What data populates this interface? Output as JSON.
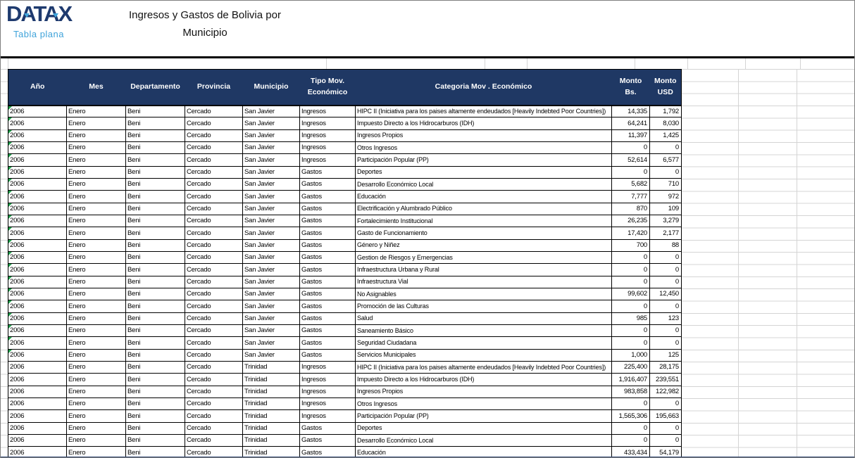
{
  "branding": {
    "logo": "DATAX",
    "tagline": "Tabla plana",
    "logo_color": "#1e3a6e",
    "tagline_color": "#3fa3da"
  },
  "title": {
    "line1": "Ingresos y Gastos de Bolivia por",
    "line2": "Municipio"
  },
  "theme": {
    "header_bg": "#1f3864",
    "header_text": "#ffffff",
    "cell_border": "#000000",
    "faint_gridline": "#d4d4d4",
    "error_indicator_green": "#1fa04a"
  },
  "table": {
    "columns": [
      "Año",
      "Mes",
      "Departamento",
      "Provincia",
      "Municipio",
      "Tipo Mov.\nEconómico",
      "Categoria Mov . Económico",
      "Monto Bs.",
      "Monto\nUSD"
    ],
    "fields": [
      "anio",
      "mes",
      "departamento",
      "provincia",
      "municipio",
      "tipo",
      "categoria",
      "monto_bs",
      "monto_usd"
    ],
    "rows": [
      {
        "anio": "2006",
        "mes": "Enero",
        "departamento": "Beni",
        "provincia": "Cercado",
        "municipio": "San Javier",
        "tipo": "Ingresos",
        "categoria": "HIPC II (Iniciativa para los paises altamente endeudados [Heavily Indebted Poor Countries])",
        "monto_bs": "14,335",
        "monto_usd": "1,792",
        "marker": true
      },
      {
        "anio": "2006",
        "mes": "Enero",
        "departamento": "Beni",
        "provincia": "Cercado",
        "municipio": "San Javier",
        "tipo": "Ingresos",
        "categoria": "Impuesto Directo a los Hidrocarburos (IDH)",
        "monto_bs": "64,241",
        "monto_usd": "8,030",
        "marker": true
      },
      {
        "anio": "2006",
        "mes": "Enero",
        "departamento": "Beni",
        "provincia": "Cercado",
        "municipio": "San Javier",
        "tipo": "Ingresos",
        "categoria": "Ingresos Propios",
        "monto_bs": "11,397",
        "monto_usd": "1,425",
        "marker": true
      },
      {
        "anio": "2006",
        "mes": "Enero",
        "departamento": "Beni",
        "provincia": "Cercado",
        "municipio": "San Javier",
        "tipo": "Ingresos",
        "categoria": "Otros Ingresos",
        "monto_bs": "0",
        "monto_usd": "0",
        "marker": true
      },
      {
        "anio": "2006",
        "mes": "Enero",
        "departamento": "Beni",
        "provincia": "Cercado",
        "municipio": "San Javier",
        "tipo": "Ingresos",
        "categoria": "Participación Popular (PP)",
        "monto_bs": "52,614",
        "monto_usd": "6,577",
        "marker": true
      },
      {
        "anio": "2006",
        "mes": "Enero",
        "departamento": "Beni",
        "provincia": "Cercado",
        "municipio": "San Javier",
        "tipo": "Gastos",
        "categoria": "Deportes",
        "monto_bs": "0",
        "monto_usd": "0",
        "marker": true
      },
      {
        "anio": "2006",
        "mes": "Enero",
        "departamento": "Beni",
        "provincia": "Cercado",
        "municipio": "San Javier",
        "tipo": "Gastos",
        "categoria": "Desarrollo Económico Local",
        "monto_bs": "5,682",
        "monto_usd": "710",
        "marker": true
      },
      {
        "anio": "2006",
        "mes": "Enero",
        "departamento": "Beni",
        "provincia": "Cercado",
        "municipio": "San Javier",
        "tipo": "Gastos",
        "categoria": "Educación",
        "monto_bs": "7,777",
        "monto_usd": "972",
        "marker": true
      },
      {
        "anio": "2006",
        "mes": "Enero",
        "departamento": "Beni",
        "provincia": "Cercado",
        "municipio": "San Javier",
        "tipo": "Gastos",
        "categoria": "Electrificación y Alumbrado Público",
        "monto_bs": "870",
        "monto_usd": "109",
        "marker": true
      },
      {
        "anio": "2006",
        "mes": "Enero",
        "departamento": "Beni",
        "provincia": "Cercado",
        "municipio": "San Javier",
        "tipo": "Gastos",
        "categoria": "Fortalecimiento Institucional",
        "monto_bs": "26,235",
        "monto_usd": "3,279",
        "marker": true
      },
      {
        "anio": "2006",
        "mes": "Enero",
        "departamento": "Beni",
        "provincia": "Cercado",
        "municipio": "San Javier",
        "tipo": "Gastos",
        "categoria": "Gasto de Funcionamiento",
        "monto_bs": "17,420",
        "monto_usd": "2,177",
        "marker": true
      },
      {
        "anio": "2006",
        "mes": "Enero",
        "departamento": "Beni",
        "provincia": "Cercado",
        "municipio": "San Javier",
        "tipo": "Gastos",
        "categoria": "Género y Niñez",
        "monto_bs": "700",
        "monto_usd": "88",
        "marker": true
      },
      {
        "anio": "2006",
        "mes": "Enero",
        "departamento": "Beni",
        "provincia": "Cercado",
        "municipio": "San Javier",
        "tipo": "Gastos",
        "categoria": "Gestion de Riesgos y Emergencias",
        "monto_bs": "0",
        "monto_usd": "0",
        "marker": true
      },
      {
        "anio": "2006",
        "mes": "Enero",
        "departamento": "Beni",
        "provincia": "Cercado",
        "municipio": "San Javier",
        "tipo": "Gastos",
        "categoria": "Infraestructura Urbana y Rural",
        "monto_bs": "0",
        "monto_usd": "0",
        "marker": true
      },
      {
        "anio": "2006",
        "mes": "Enero",
        "departamento": "Beni",
        "provincia": "Cercado",
        "municipio": "San Javier",
        "tipo": "Gastos",
        "categoria": "Infraestructura Vial",
        "monto_bs": "0",
        "monto_usd": "0",
        "marker": true
      },
      {
        "anio": "2006",
        "mes": "Enero",
        "departamento": "Beni",
        "provincia": "Cercado",
        "municipio": "San Javier",
        "tipo": "Gastos",
        "categoria": "No Asignables",
        "monto_bs": "99,602",
        "monto_usd": "12,450",
        "marker": true
      },
      {
        "anio": "2006",
        "mes": "Enero",
        "departamento": "Beni",
        "provincia": "Cercado",
        "municipio": "San Javier",
        "tipo": "Gastos",
        "categoria": "Promoción de las Culturas",
        "monto_bs": "0",
        "monto_usd": "0",
        "marker": true
      },
      {
        "anio": "2006",
        "mes": "Enero",
        "departamento": "Beni",
        "provincia": "Cercado",
        "municipio": "San Javier",
        "tipo": "Gastos",
        "categoria": "Salud",
        "monto_bs": "985",
        "monto_usd": "123",
        "marker": true
      },
      {
        "anio": "2006",
        "mes": "Enero",
        "departamento": "Beni",
        "provincia": "Cercado",
        "municipio": "San Javier",
        "tipo": "Gastos",
        "categoria": "Saneamiento Básico",
        "monto_bs": "0",
        "monto_usd": "0",
        "marker": true
      },
      {
        "anio": "2006",
        "mes": "Enero",
        "departamento": "Beni",
        "provincia": "Cercado",
        "municipio": "San Javier",
        "tipo": "Gastos",
        "categoria": "Seguridad Ciudadana",
        "monto_bs": "0",
        "monto_usd": "0",
        "marker": true
      },
      {
        "anio": "2006",
        "mes": "Enero",
        "departamento": "Beni",
        "provincia": "Cercado",
        "municipio": "San Javier",
        "tipo": "Gastos",
        "categoria": "Servicios Municipales",
        "monto_bs": "1,000",
        "monto_usd": "125",
        "marker": true
      },
      {
        "anio": "2006",
        "mes": "Enero",
        "departamento": "Beni",
        "provincia": "Cercado",
        "municipio": "Trinidad",
        "tipo": "Ingresos",
        "categoria": "HIPC II (Iniciativa para los paises altamente endeudados [Heavily Indebted Poor Countries])",
        "monto_bs": "225,400",
        "monto_usd": "28,175",
        "marker": false
      },
      {
        "anio": "2006",
        "mes": "Enero",
        "departamento": "Beni",
        "provincia": "Cercado",
        "municipio": "Trinidad",
        "tipo": "Ingresos",
        "categoria": "Impuesto Directo a los Hidrocarburos (IDH)",
        "monto_bs": "1,916,407",
        "monto_usd": "239,551",
        "marker": false
      },
      {
        "anio": "2006",
        "mes": "Enero",
        "departamento": "Beni",
        "provincia": "Cercado",
        "municipio": "Trinidad",
        "tipo": "Ingresos",
        "categoria": "Ingresos Propios",
        "monto_bs": "983,858",
        "monto_usd": "122,982",
        "marker": false
      },
      {
        "anio": "2006",
        "mes": "Enero",
        "departamento": "Beni",
        "provincia": "Cercado",
        "municipio": "Trinidad",
        "tipo": "Ingresos",
        "categoria": "Otros Ingresos",
        "monto_bs": "0",
        "monto_usd": "0",
        "marker": false
      },
      {
        "anio": "2006",
        "mes": "Enero",
        "departamento": "Beni",
        "provincia": "Cercado",
        "municipio": "Trinidad",
        "tipo": "Ingresos",
        "categoria": "Participación Popular (PP)",
        "monto_bs": "1,565,306",
        "monto_usd": "195,663",
        "marker": false
      },
      {
        "anio": "2006",
        "mes": "Enero",
        "departamento": "Beni",
        "provincia": "Cercado",
        "municipio": "Trinidad",
        "tipo": "Gastos",
        "categoria": "Deportes",
        "monto_bs": "0",
        "monto_usd": "0",
        "marker": false
      },
      {
        "anio": "2006",
        "mes": "Enero",
        "departamento": "Beni",
        "provincia": "Cercado",
        "municipio": "Trinidad",
        "tipo": "Gastos",
        "categoria": "Desarrollo Económico Local",
        "monto_bs": "0",
        "monto_usd": "0",
        "marker": false
      },
      {
        "anio": "2006",
        "mes": "Enero",
        "departamento": "Beni",
        "provincia": "Cercado",
        "municipio": "Trinidad",
        "tipo": "Gastos",
        "categoria": "Educación",
        "monto_bs": "433,434",
        "monto_usd": "54,179",
        "marker": false
      }
    ]
  }
}
